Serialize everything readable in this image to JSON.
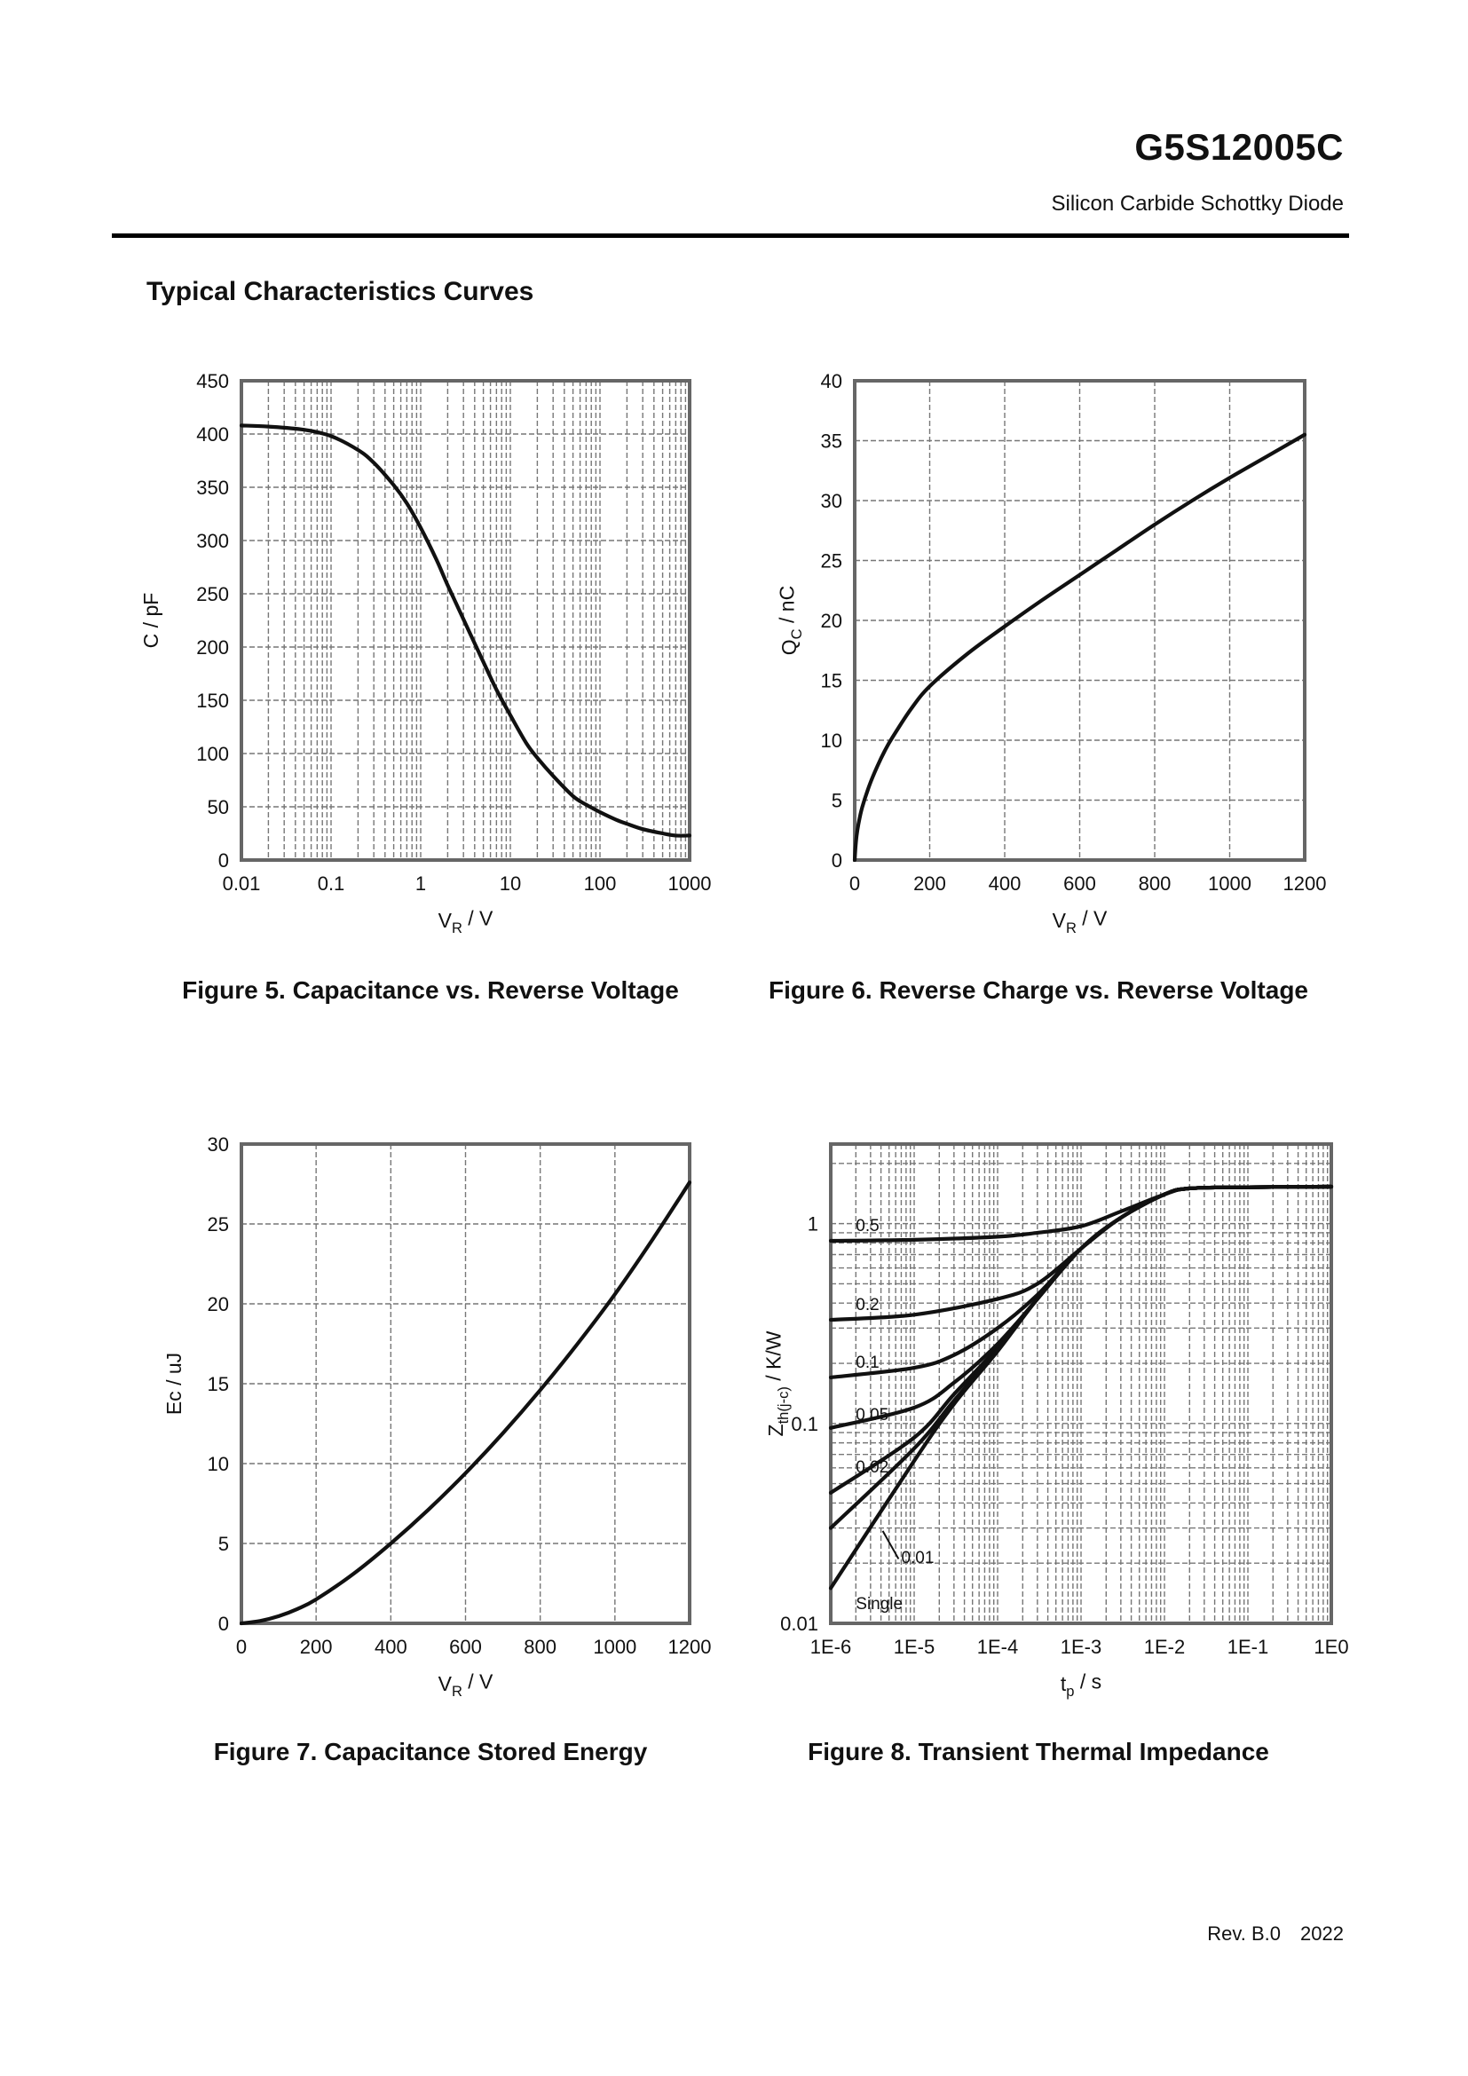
{
  "header": {
    "part_number": "G5S12005C",
    "subtitle": "Silicon Carbide Schottky Diode"
  },
  "section_title": "Typical Characteristics Curves",
  "footer": {
    "revision": "Rev. B.0",
    "year": "2022"
  },
  "chart_data": [
    {
      "id": "fig5",
      "type": "line",
      "caption": "Figure 5. Capacitance vs. Reverse Voltage",
      "xlabel": "V_R / V",
      "ylabel": "C / pF",
      "xscale": "log",
      "xlim": [
        0.01,
        1000
      ],
      "ylim": [
        0,
        450
      ],
      "xticks": [
        0.01,
        0.1,
        1,
        10,
        100,
        1000
      ],
      "xticklabels": [
        "0.01",
        "0.1",
        "1",
        "10",
        "100",
        "1000"
      ],
      "yticks": [
        0,
        50,
        100,
        150,
        200,
        250,
        300,
        350,
        400,
        450
      ],
      "yticklabels": [
        "0",
        "50",
        "100",
        "150",
        "200",
        "250",
        "300",
        "350",
        "400",
        "450"
      ],
      "grid": true,
      "series": [
        {
          "name": "C",
          "x": [
            0.01,
            0.02,
            0.05,
            0.1,
            0.2,
            0.3,
            0.5,
            0.7,
            1,
            1.5,
            2,
            3,
            5,
            7,
            10,
            15,
            20,
            30,
            50,
            70,
            100,
            150,
            200,
            300,
            500,
            700,
            1000
          ],
          "y": [
            408,
            407,
            404,
            398,
            385,
            373,
            352,
            335,
            312,
            282,
            258,
            226,
            186,
            160,
            136,
            110,
            96,
            79,
            60,
            52,
            45,
            38,
            34,
            29,
            25,
            23,
            23
          ]
        }
      ]
    },
    {
      "id": "fig6",
      "type": "line",
      "caption": "Figure 6. Reverse Charge vs. Reverse Voltage",
      "xlabel": "V_R / V",
      "ylabel": "Q_C / nC",
      "xscale": "linear",
      "xlim": [
        0,
        1200
      ],
      "ylim": [
        0,
        40
      ],
      "xticks": [
        0,
        200,
        400,
        600,
        800,
        1000,
        1200
      ],
      "xticklabels": [
        "0",
        "200",
        "400",
        "600",
        "800",
        "1000",
        "1200"
      ],
      "yticks": [
        0,
        5,
        10,
        15,
        20,
        25,
        30,
        35,
        40
      ],
      "yticklabels": [
        "0",
        "5",
        "10",
        "15",
        "20",
        "25",
        "30",
        "35",
        "40"
      ],
      "grid": true,
      "series": [
        {
          "name": "Qc",
          "x": [
            0,
            2,
            5,
            10,
            20,
            40,
            60,
            80,
            100,
            150,
            200,
            300,
            400,
            500,
            600,
            700,
            800,
            900,
            1000,
            1100,
            1200
          ],
          "y": [
            0,
            1.0,
            2.0,
            3.0,
            4.4,
            6.3,
            7.8,
            9.1,
            10.2,
            12.6,
            14.5,
            17.2,
            19.5,
            21.7,
            23.8,
            25.9,
            28.0,
            30.0,
            31.9,
            33.7,
            35.5
          ]
        }
      ]
    },
    {
      "id": "fig7",
      "type": "line",
      "caption": "Figure 7. Capacitance Stored Energy",
      "xlabel": "V_R / V",
      "ylabel": "Ec / uJ",
      "xscale": "linear",
      "xlim": [
        0,
        1200
      ],
      "ylim": [
        0,
        30
      ],
      "xticks": [
        0,
        200,
        400,
        600,
        800,
        1000,
        1200
      ],
      "xticklabels": [
        "0",
        "200",
        "400",
        "600",
        "800",
        "1000",
        "1200"
      ],
      "yticks": [
        0,
        5,
        10,
        15,
        20,
        25,
        30
      ],
      "yticklabels": [
        "0",
        "5",
        "10",
        "15",
        "20",
        "25",
        "30"
      ],
      "grid": true,
      "series": [
        {
          "name": "Ec",
          "x": [
            0,
            50,
            100,
            150,
            200,
            300,
            400,
            500,
            600,
            700,
            800,
            900,
            1000,
            1100,
            1200
          ],
          "y": [
            0,
            0.15,
            0.45,
            0.9,
            1.5,
            3.1,
            5.0,
            7.1,
            9.4,
            11.9,
            14.6,
            17.5,
            20.6,
            24.0,
            27.6
          ]
        }
      ]
    },
    {
      "id": "fig8",
      "type": "line",
      "caption": "Figure 8. Transient Thermal Impedance",
      "xlabel": "t_p / s",
      "ylabel": "Z_th(j-c) / K/W",
      "xscale": "log",
      "yscale": "log",
      "xlim": [
        1e-06,
        1
      ],
      "ylim": [
        0.01,
        2.5
      ],
      "xticks": [
        1e-06,
        1e-05,
        0.0001,
        0.001,
        0.01,
        0.1,
        1
      ],
      "xticklabels": [
        "1E-6",
        "1E-5",
        "1E-4",
        "1E-3",
        "1E-2",
        "1E-1",
        "1E0"
      ],
      "yticks": [
        0.01,
        0.1,
        1
      ],
      "yticklabels": [
        "0.01",
        "0.1",
        "1"
      ],
      "grid": true,
      "series": [
        {
          "name": "0.5",
          "x": [
            1e-06,
            1e-05,
            0.0001,
            0.0003,
            0.001,
            0.003,
            0.01,
            0.02,
            0.1,
            1
          ],
          "y": [
            0.82,
            0.83,
            0.86,
            0.9,
            0.97,
            1.15,
            1.4,
            1.5,
            1.52,
            1.53
          ]
        },
        {
          "name": "0.2",
          "x": [
            1e-06,
            1e-05,
            0.0001,
            0.0003,
            0.001,
            0.003,
            0.01,
            0.02,
            0.1,
            1
          ],
          "y": [
            0.33,
            0.35,
            0.42,
            0.5,
            0.75,
            1.07,
            1.4,
            1.5,
            1.52,
            1.53
          ]
        },
        {
          "name": "0.1",
          "x": [
            1e-06,
            1e-05,
            3e-05,
            0.0001,
            0.0003,
            0.001,
            0.003,
            0.01,
            0.02,
            0.1,
            1
          ],
          "y": [
            0.17,
            0.19,
            0.22,
            0.3,
            0.44,
            0.75,
            1.07,
            1.4,
            1.5,
            1.52,
            1.53
          ]
        },
        {
          "name": "0.05",
          "x": [
            1e-06,
            1e-05,
            3e-05,
            0.0001,
            0.0003,
            0.001,
            0.003,
            0.01,
            0.02,
            0.1,
            1
          ],
          "y": [
            0.095,
            0.12,
            0.16,
            0.25,
            0.42,
            0.75,
            1.07,
            1.4,
            1.5,
            1.52,
            1.53
          ]
        },
        {
          "name": "0.02",
          "x": [
            1e-06,
            1e-05,
            3e-05,
            0.0001,
            0.0003,
            0.001,
            0.003,
            0.01,
            0.02,
            0.1,
            1
          ],
          "y": [
            0.045,
            0.085,
            0.14,
            0.24,
            0.42,
            0.75,
            1.07,
            1.4,
            1.5,
            1.52,
            1.53
          ]
        },
        {
          "name": "0.01",
          "x": [
            1e-06,
            1e-05,
            3e-05,
            0.0001,
            0.0003,
            0.001,
            0.003,
            0.01,
            0.02,
            0.1,
            1
          ],
          "y": [
            0.03,
            0.075,
            0.13,
            0.235,
            0.42,
            0.75,
            1.07,
            1.4,
            1.5,
            1.52,
            1.53
          ]
        },
        {
          "name": "Single",
          "x": [
            1e-06,
            1e-05,
            3e-05,
            0.0001,
            0.0003,
            0.001,
            0.003,
            0.01,
            0.02,
            0.1,
            1
          ],
          "y": [
            0.015,
            0.065,
            0.125,
            0.23,
            0.42,
            0.75,
            1.07,
            1.4,
            1.5,
            1.52,
            1.53
          ]
        }
      ],
      "annotations": [
        {
          "text": "0.5",
          "x": 2e-06,
          "y": 0.92
        },
        {
          "text": "0.2",
          "x": 2e-06,
          "y": 0.37
        },
        {
          "text": "0.1",
          "x": 2e-06,
          "y": 0.19
        },
        {
          "text": "0.05",
          "x": 2e-06,
          "y": 0.104
        },
        {
          "text": "0.02",
          "x": 2e-06,
          "y": 0.057
        },
        {
          "text": "0.01",
          "x": 7e-06,
          "y": 0.02
        },
        {
          "text": "Single",
          "x": 2e-06,
          "y": 0.0118
        }
      ]
    }
  ]
}
